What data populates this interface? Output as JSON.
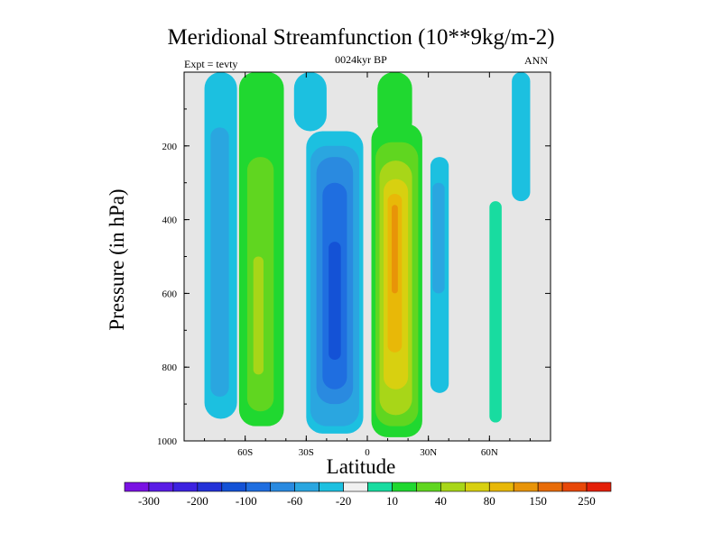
{
  "chart_data": {
    "type": "heatmap",
    "title": "Meridional Streamfunction (10**9kg/m-2)",
    "subtitle": "0024kyr BP",
    "left_label": "Expt = tevty",
    "right_label": "ANN",
    "xlabel": "Latitude",
    "ylabel": "Pressure (in hPa)",
    "xlim": [
      -90,
      90
    ],
    "ylim": [
      1000,
      0
    ],
    "x_ticks": [
      {
        "value": -60,
        "label": "60S"
      },
      {
        "value": -30,
        "label": "30S"
      },
      {
        "value": 0,
        "label": "0"
      },
      {
        "value": 30,
        "label": "30N"
      },
      {
        "value": 60,
        "label": "60N"
      }
    ],
    "y_ticks": [
      {
        "value": 200,
        "label": "200"
      },
      {
        "value": 400,
        "label": "400"
      },
      {
        "value": 600,
        "label": "600"
      },
      {
        "value": 800,
        "label": "800"
      },
      {
        "value": 1000,
        "label": "1000"
      }
    ],
    "background_color": "#e6e6e6",
    "colorbar": {
      "colors": [
        "#7a12e3",
        "#5a1ce6",
        "#3c22e0",
        "#2432d8",
        "#1452d6",
        "#1f6ee0",
        "#2a8ae0",
        "#2aa6e0",
        "#1cc0e0",
        "#f0f0f0",
        "#18dca0",
        "#20d830",
        "#60d620",
        "#a8d618",
        "#d8d010",
        "#e8b808",
        "#e89408",
        "#e86c08",
        "#e84808",
        "#e42008"
      ],
      "labels": [
        "-300",
        "-200",
        "-100",
        "-60",
        "-20",
        "10",
        "40",
        "80",
        "150",
        "250"
      ]
    },
    "cells": [
      {
        "lat_range": [
          -80,
          -64
        ],
        "p_range": [
          0,
          940
        ],
        "level": -20
      },
      {
        "lat_range": [
          -77,
          -68
        ],
        "p_range": [
          150,
          880
        ],
        "level": -40
      },
      {
        "lat_range": [
          -63,
          -41
        ],
        "p_range": [
          0,
          960
        ],
        "level": 10
      },
      {
        "lat_range": [
          -59,
          -46
        ],
        "p_range": [
          230,
          920
        ],
        "level": 40
      },
      {
        "lat_range": [
          -56,
          -51
        ],
        "p_range": [
          500,
          820
        ],
        "level": 60
      },
      {
        "lat_range": [
          -36,
          -20
        ],
        "p_range": [
          0,
          160
        ],
        "level": -20
      },
      {
        "lat_range": [
          -30,
          -2
        ],
        "p_range": [
          160,
          980
        ],
        "level": -20
      },
      {
        "lat_range": [
          -28,
          -4
        ],
        "p_range": [
          200,
          960
        ],
        "level": -40
      },
      {
        "lat_range": [
          -25,
          -7
        ],
        "p_range": [
          230,
          900
        ],
        "level": -60
      },
      {
        "lat_range": [
          -22,
          -10
        ],
        "p_range": [
          300,
          860
        ],
        "level": -80
      },
      {
        "lat_range": [
          -19,
          -13
        ],
        "p_range": [
          460,
          780
        ],
        "level": -100
      },
      {
        "lat_range": [
          5,
          22
        ],
        "p_range": [
          0,
          180
        ],
        "level": 10
      },
      {
        "lat_range": [
          2,
          27
        ],
        "p_range": [
          140,
          990
        ],
        "level": 10
      },
      {
        "lat_range": [
          4,
          25
        ],
        "p_range": [
          190,
          960
        ],
        "level": 40
      },
      {
        "lat_range": [
          6,
          22
        ],
        "p_range": [
          240,
          930
        ],
        "level": 60
      },
      {
        "lat_range": [
          8,
          20
        ],
        "p_range": [
          290,
          860
        ],
        "level": 80
      },
      {
        "lat_range": [
          10,
          17
        ],
        "p_range": [
          330,
          760
        ],
        "level": 100
      },
      {
        "lat_range": [
          12,
          15
        ],
        "p_range": [
          360,
          600
        ],
        "level": 120
      },
      {
        "lat_range": [
          31,
          40
        ],
        "p_range": [
          230,
          870
        ],
        "level": -20
      },
      {
        "lat_range": [
          32,
          38
        ],
        "p_range": [
          300,
          600
        ],
        "level": -40
      },
      {
        "lat_range": [
          60,
          66
        ],
        "p_range": [
          350,
          950
        ],
        "level": 10
      },
      {
        "lat_range": [
          71,
          80
        ],
        "p_range": [
          0,
          350
        ],
        "level": -20
      }
    ]
  }
}
